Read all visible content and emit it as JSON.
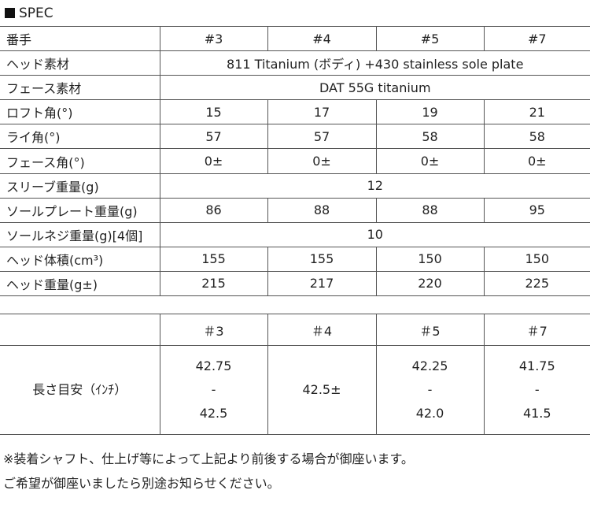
{
  "title": "SPEC",
  "spec": {
    "header": [
      "番手",
      "#3",
      "#4",
      "#5",
      "#7"
    ],
    "rows": [
      {
        "label": "ヘッド素材",
        "merged": "811 Titanium (ボディ) +430 stainless sole plate"
      },
      {
        "label": "フェース素材",
        "merged": "DAT 55G titanium"
      },
      {
        "label": "ロフト角(°)",
        "values": [
          "15",
          "17",
          "19",
          "21"
        ]
      },
      {
        "label": "ライ角(°)",
        "values": [
          "57",
          "57",
          "58",
          "58"
        ]
      },
      {
        "label": "フェース角(°)",
        "values": [
          "0±",
          "0±",
          "0±",
          "0±"
        ]
      },
      {
        "label": "スリーブ重量(g)",
        "merged": "12"
      },
      {
        "label": "ソールプレート重量(g)",
        "values": [
          "86",
          "88",
          "88",
          "95"
        ]
      },
      {
        "label": "ソールネジ重量(g)[4個]",
        "merged": "10"
      },
      {
        "label": "ヘッド体積(cm³)",
        "values": [
          "155",
          "155",
          "150",
          "150"
        ]
      },
      {
        "label": "ヘッド重量(g±)",
        "values": [
          "215",
          "217",
          "220",
          "225"
        ]
      }
    ]
  },
  "length": {
    "header": [
      "",
      "＃3",
      "＃4",
      "＃5",
      "＃7"
    ],
    "label": "長さ目安（ｲﾝﾁ）",
    "values": [
      [
        "42.75",
        "-",
        "42.5"
      ],
      [
        "42.5±"
      ],
      [
        "42.25",
        "-",
        "42.0"
      ],
      [
        "41.75",
        "-",
        "41.5"
      ]
    ]
  },
  "notes": [
    "※装着シャフト、仕上げ等によって上記より前後する場合が御座います。",
    "ご希望が御座いましたら別途お知らせください。"
  ]
}
